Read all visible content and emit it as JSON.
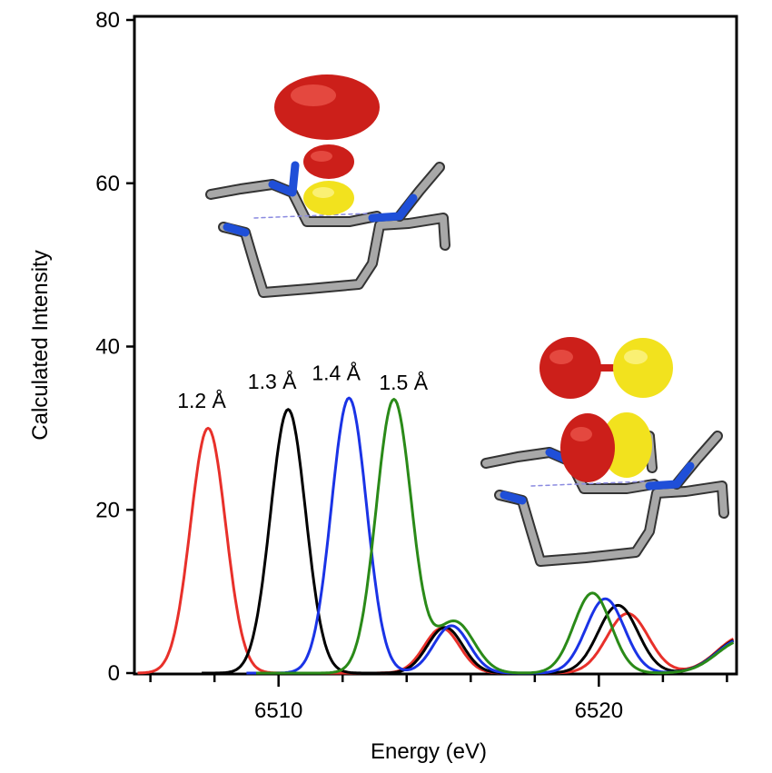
{
  "chart_data": {
    "type": "line",
    "xlabel": "Energy (eV)",
    "ylabel": "Calculated Intensity",
    "xlim": [
      6505.5,
      6524.3
    ],
    "ylim": [
      0,
      80
    ],
    "xticks_major": [
      6510,
      6520
    ],
    "xticks_minor": [
      6506,
      6508,
      6512,
      6514,
      6516,
      6518,
      6522,
      6524
    ],
    "yticks": [
      0,
      20,
      40,
      60,
      80
    ],
    "series": [
      {
        "name": "1.2 Å",
        "color": "#e8302a",
        "shift": 0.0,
        "x_start": 6505.6,
        "peaks": [
          [
            6507.8,
            30.0,
            0.55
          ],
          [
            6515.1,
            5.5,
            0.55
          ],
          [
            6520.9,
            7.3,
            0.65
          ],
          [
            6524.5,
            4.5,
            0.8
          ]
        ]
      },
      {
        "name": "1.3 Å",
        "color": "#000000",
        "shift": 0.0,
        "x_start": 6507.6,
        "peaks": [
          [
            6510.3,
            32.3,
            0.55
          ],
          [
            6515.2,
            5.6,
            0.55
          ],
          [
            6520.6,
            8.3,
            0.62
          ],
          [
            6524.5,
            4.3,
            0.8
          ]
        ]
      },
      {
        "name": "1.4 Å",
        "color": "#1a33e6",
        "shift": 0.0,
        "x_start": 6509.0,
        "peaks": [
          [
            6512.2,
            33.7,
            0.55
          ],
          [
            6515.4,
            5.8,
            0.55
          ],
          [
            6520.2,
            9.1,
            0.6
          ],
          [
            6524.5,
            4.2,
            0.8
          ]
        ]
      },
      {
        "name": "1.5 Å",
        "color": "#2a8a18",
        "shift": 0.0,
        "x_start": 6509.3,
        "peaks": [
          [
            6513.6,
            33.5,
            0.55
          ],
          [
            6515.5,
            6.3,
            0.6
          ],
          [
            6519.8,
            9.8,
            0.58
          ],
          [
            6524.5,
            4.0,
            0.8
          ]
        ]
      }
    ],
    "annotations": [
      {
        "text": "1.2 Å",
        "x": 6507.6,
        "y": 32.5
      },
      {
        "text": "1.3 Å",
        "x": 6509.8,
        "y": 34.8
      },
      {
        "text": "1.4 Å",
        "x": 6511.8,
        "y": 35.9
      },
      {
        "text": "1.5 Å",
        "x": 6513.9,
        "y": 34.7
      }
    ]
  }
}
